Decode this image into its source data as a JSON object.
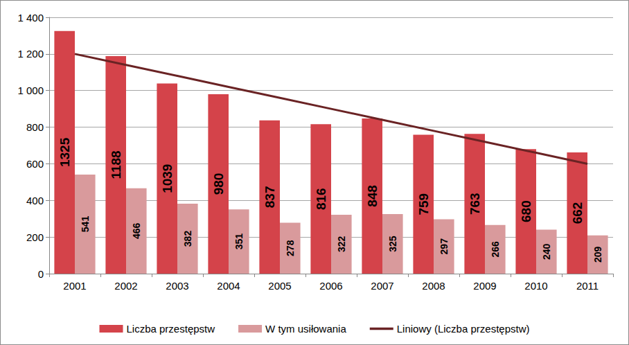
{
  "chart_data": {
    "type": "bar",
    "categories": [
      "2001",
      "2002",
      "2003",
      "2004",
      "2005",
      "2006",
      "2007",
      "2008",
      "2009",
      "2010",
      "2011"
    ],
    "series": [
      {
        "name": "Liczba przestępstw",
        "type": "bar",
        "color": "#d4434a",
        "data_labels": true,
        "values": [
          1325,
          1188,
          1039,
          980,
          837,
          816,
          848,
          759,
          763,
          680,
          662
        ]
      },
      {
        "name": "W tym usiłowania",
        "type": "bar",
        "color": "#d99a9c",
        "data_labels": true,
        "values": [
          541,
          466,
          382,
          351,
          278,
          322,
          325,
          297,
          266,
          240,
          209
        ]
      },
      {
        "name": "Liniowy (Liczba przestępstw)",
        "type": "line",
        "color": "#6a2324",
        "line_style": "solid",
        "values": [
          1200,
          1140,
          1080,
          1020,
          960,
          900,
          840,
          780,
          720,
          660,
          600
        ]
      }
    ],
    "ylim": [
      0,
      1400
    ],
    "yticks": [
      0,
      200,
      400,
      600,
      800,
      {
        "value": 1000,
        "label": "1 000"
      },
      {
        "value": 1200,
        "label": "1 200"
      },
      {
        "value": 1400,
        "label": "1 400"
      }
    ],
    "grid": true,
    "legend": "bottom"
  }
}
